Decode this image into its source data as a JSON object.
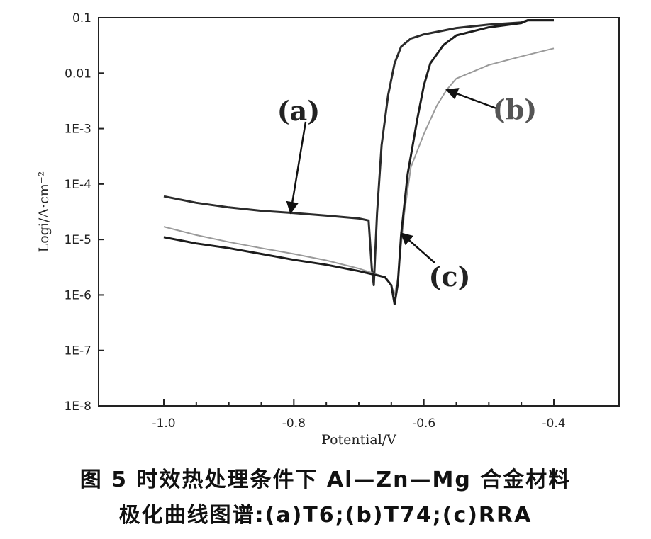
{
  "chart_data": {
    "type": "line",
    "xlabel": "Potential/V",
    "ylabel": "Logi/A·cm⁻²",
    "x_ticks": [
      -1.0,
      -0.8,
      -0.6,
      -0.4
    ],
    "x_tick_labels": [
      "-1.0",
      "-0.8",
      "-0.6",
      "-0.4"
    ],
    "xlim": [
      -1.1,
      -0.31
    ],
    "y_scale": "log",
    "y_ticks": [
      1e-08,
      1e-07,
      1e-06,
      1e-05,
      0.0001,
      0.001,
      0.01,
      0.1
    ],
    "y_tick_labels": [
      "1E-8",
      "1E-7",
      "1E-6",
      "1E-5",
      "1E-4",
      "1E-3",
      "0.01",
      "0.1"
    ],
    "ylim": [
      1e-08,
      0.1
    ],
    "legend": "none",
    "series": [
      {
        "name": "(a)",
        "color": "#2b2b2b",
        "x": [
          -1.0,
          -0.95,
          -0.9,
          -0.85,
          -0.8,
          -0.75,
          -0.7,
          -0.685,
          -0.68,
          -0.677,
          -0.672,
          -0.665,
          -0.655,
          -0.645,
          -0.635,
          -0.62,
          -0.6,
          -0.55,
          -0.5,
          -0.45,
          -0.44,
          -0.4
        ],
        "y": [
          6e-05,
          4.6e-05,
          3.8e-05,
          3.3e-05,
          3e-05,
          2.7e-05,
          2.4e-05,
          2.2e-05,
          3e-06,
          1.5e-06,
          3e-05,
          0.0005,
          0.004,
          0.015,
          0.03,
          0.042,
          0.05,
          0.065,
          0.075,
          0.082,
          0.09,
          0.09
        ]
      },
      {
        "name": "(b)",
        "color": "#9a9a9a",
        "x": [
          -1.0,
          -0.95,
          -0.9,
          -0.85,
          -0.8,
          -0.75,
          -0.7,
          -0.66,
          -0.65,
          -0.645,
          -0.64,
          -0.63,
          -0.62,
          -0.6,
          -0.58,
          -0.565,
          -0.55,
          -0.5,
          -0.45,
          -0.4
        ],
        "y": [
          1.7e-05,
          1.2e-05,
          9e-06,
          7e-06,
          5.5e-06,
          4.2e-06,
          3e-06,
          2.1e-06,
          1.5e-06,
          1e-06,
          2e-06,
          3e-05,
          0.0002,
          0.0008,
          0.0026,
          0.005,
          0.008,
          0.014,
          0.02,
          0.028
        ]
      },
      {
        "name": "(c)",
        "color": "#1c1c1c",
        "x": [
          -1.0,
          -0.95,
          -0.9,
          -0.85,
          -0.8,
          -0.75,
          -0.7,
          -0.66,
          -0.65,
          -0.645,
          -0.64,
          -0.635,
          -0.625,
          -0.61,
          -0.6,
          -0.59,
          -0.57,
          -0.55,
          -0.5,
          -0.45,
          -0.44,
          -0.4
        ],
        "y": [
          1.1e-05,
          8.5e-06,
          7e-06,
          5.5e-06,
          4.3e-06,
          3.5e-06,
          2.7e-06,
          2.1e-06,
          1.5e-06,
          6.8e-07,
          1.6e-06,
          1.2e-05,
          0.00015,
          0.0015,
          0.006,
          0.015,
          0.032,
          0.048,
          0.067,
          0.08,
          0.09,
          0.09
        ]
      }
    ],
    "annotations": [
      {
        "text": "(a)",
        "color": "#222222",
        "target_x": -0.805,
        "target_y": 3e-05
      },
      {
        "text": "(b)",
        "color": "#555555",
        "target_x": -0.565,
        "target_y": 0.005
      },
      {
        "text": "(c)",
        "color": "#222222",
        "target_x": -0.635,
        "target_y": 1.3e-05
      }
    ]
  },
  "caption": {
    "line1": "图 5    时效热处理条件下 Al—Zn—Mg 合金材料",
    "line2": "极化曲线图谱:(a)T6;(b)T74;(c)RRA"
  }
}
